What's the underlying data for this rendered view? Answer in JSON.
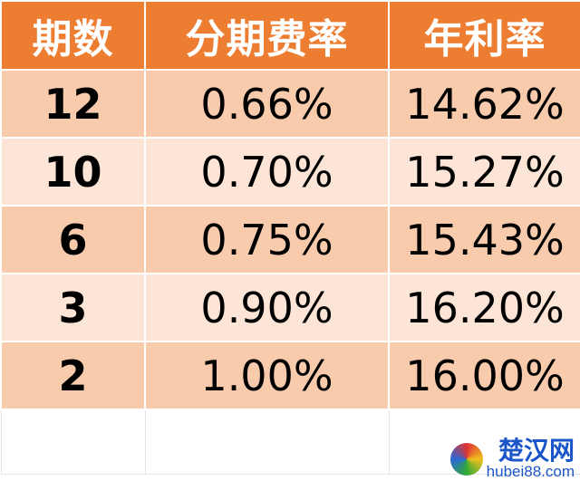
{
  "headers": [
    "期数",
    "分期费率",
    "年利率"
  ],
  "rows": [
    {
      "period": "12",
      "fee_rate": "0.66%",
      "annual_rate": "14.62%"
    },
    {
      "period": "10",
      "fee_rate": "0.70%",
      "annual_rate": "15.27%"
    },
    {
      "period": "6",
      "fee_rate": "0.75%",
      "annual_rate": "15.43%"
    },
    {
      "period": "3",
      "fee_rate": "0.90%",
      "annual_rate": "16.20%"
    },
    {
      "period": "2",
      "fee_rate": "1.00%",
      "annual_rate": "16.00%"
    }
  ],
  "watermark": {
    "name": "楚汉网",
    "url": "hubei88.com"
  },
  "colors": {
    "header": "#ED7D31",
    "row_dark": "#F8CBAD",
    "row_light": "#FCE4D6"
  }
}
